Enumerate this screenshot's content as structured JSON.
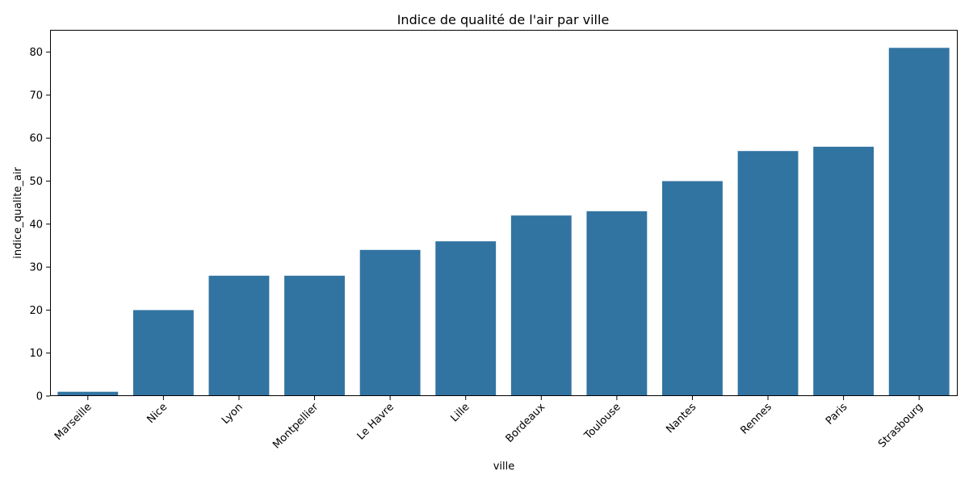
{
  "chart_data": {
    "type": "bar",
    "title": "Indice de qualité de l'air par ville",
    "xlabel": "ville",
    "ylabel": "indice_qualite_air",
    "categories": [
      "Marseille",
      "Nice",
      "Lyon",
      "Montpellier",
      "Le Havre",
      "Lille",
      "Bordeaux",
      "Toulouse",
      "Nantes",
      "Rennes",
      "Paris",
      "Strasbourg"
    ],
    "values": [
      1,
      20,
      28,
      28,
      34,
      36,
      42,
      43,
      50,
      57,
      58,
      81
    ],
    "ylim": [
      0,
      85
    ],
    "yticks": [
      0,
      10,
      20,
      30,
      40,
      50,
      60,
      70,
      80
    ],
    "grid": false,
    "legend": "none",
    "bar_color": "#3274a1"
  }
}
